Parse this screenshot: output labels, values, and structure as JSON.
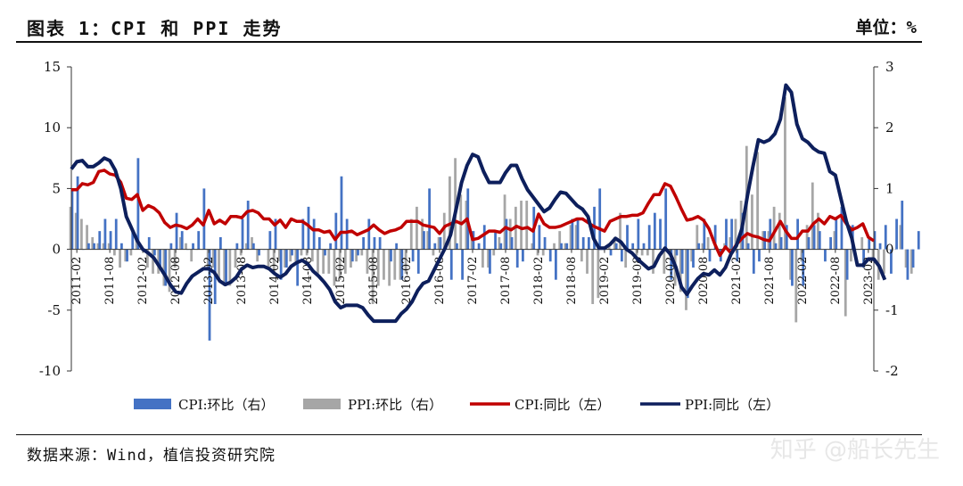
{
  "header": {
    "title": "图表 1：CPI 和 PPI 走势",
    "unit": "单位：%"
  },
  "footer": {
    "source": "数据来源：Wind，植信投资研究院",
    "watermark": "知乎 @船长先生"
  },
  "chart_data": {
    "type": "line",
    "title": "图表 1：CPI 和 PPI 走势",
    "left_axis": {
      "min": -10,
      "max": 15,
      "ticks": [
        15,
        10,
        5,
        0,
        -5,
        -10
      ]
    },
    "right_axis": {
      "min": -2,
      "max": 3,
      "ticks": [
        3,
        2,
        1,
        0,
        -1,
        -2
      ]
    },
    "x_tick_labels": [
      "2011-02",
      "2011-08",
      "2012-02",
      "2012-08",
      "2013-02",
      "2013-08",
      "2014-02",
      "2014-08",
      "2015-02",
      "2015-08",
      "2016-02",
      "2016-08",
      "2017-02",
      "2017-08",
      "2018-02",
      "2018-08",
      "2019-02",
      "2019-08",
      "2020-02",
      "2020-08",
      "2021-02",
      "2021-08",
      "2022-02",
      "2022-08",
      "2023-02"
    ],
    "x_start": "2011-01",
    "x_end": "2023-03",
    "legend_position": "bottom",
    "series": [
      {
        "name": "CPI:环比（右）",
        "type": "bar",
        "axis": "right",
        "color": "#4472c4",
        "values": [
          1.0,
          1.2,
          0.0,
          0.1,
          0.1,
          0.3,
          0.5,
          0.3,
          0.5,
          0.1,
          -0.2,
          0.3,
          1.5,
          0.0,
          0.2,
          -0.1,
          -0.3,
          -0.6,
          0.1,
          0.6,
          0.3,
          0.0,
          0.1,
          0.3,
          1.0,
          -1.5,
          -0.9,
          0.2,
          -0.6,
          0.0,
          0.1,
          0.5,
          0.8,
          0.1,
          -0.1,
          0.0,
          0.3,
          0.5,
          -0.5,
          -0.3,
          -0.1,
          -0.6,
          0.5,
          0.7,
          0.5,
          0.2,
          -0.1,
          0.1,
          0.6,
          1.2,
          0.5,
          -0.2,
          -0.1,
          0.2,
          0.5,
          0.2,
          0.2,
          0.0,
          -0.2,
          0.1,
          -0.5,
          0.0,
          -0.2,
          -0.4,
          0.3,
          1.0,
          0.1,
          0.2,
          0.1,
          -0.5,
          0.1,
          -0.5,
          1.0,
          0.3,
          0.1,
          0.4,
          -0.4,
          0.3,
          0.1,
          0.5,
          0.2,
          -0.3,
          -0.2,
          0.0,
          0.7,
          0.4,
          0.2,
          -0.2,
          -0.5,
          0.1,
          0.1,
          0.5,
          0.5,
          0.2,
          0.2,
          0.7,
          1.0,
          0.0,
          -0.1,
          0.1,
          -0.2,
          0.4,
          0.1,
          0.5,
          0.1,
          0.4,
          0.6,
          0.5,
          1.0,
          -0.5,
          -0.1,
          -0.4,
          -0.8,
          -0.3,
          0.1,
          0.5,
          -0.2,
          0.4,
          -0.2,
          0.5,
          0.5,
          -0.2,
          0.6,
          0.1,
          -0.4,
          -0.2,
          0.3,
          0.5,
          0.1,
          0.2,
          0.4,
          -0.6,
          0.5,
          -0.6,
          0.2,
          0.4,
          0.3,
          -0.2,
          0.2,
          0.5,
          0.7,
          -0.5,
          0.4,
          0.0,
          -0.3,
          0.2,
          0.3,
          0.1,
          0.4,
          -0.4,
          0.5,
          0.8,
          -0.5,
          -0.3,
          0.3
        ]
      },
      {
        "name": "PPI:环比（右）",
        "type": "bar",
        "axis": "right",
        "color": "#a6a6a6",
        "values": [
          0.7,
          0.6,
          0.5,
          0.4,
          0.2,
          0.1,
          0.1,
          0.1,
          -0.1,
          -0.3,
          -0.2,
          -0.1,
          0.2,
          0.0,
          -0.3,
          -0.4,
          -0.4,
          -0.6,
          -0.7,
          -0.3,
          0.2,
          0.1,
          -0.2,
          0.0,
          0.0,
          -0.3,
          -0.3,
          -0.5,
          -0.6,
          -0.6,
          -0.3,
          -0.1,
          0.1,
          0.2,
          -0.2,
          0.0,
          -0.3,
          -0.4,
          -0.2,
          -0.3,
          -0.2,
          -0.2,
          -0.1,
          -0.1,
          -0.2,
          -0.4,
          -0.4,
          -0.4,
          -0.6,
          -0.5,
          -0.4,
          -0.3,
          -0.2,
          -0.1,
          -0.4,
          -0.9,
          -0.6,
          -0.5,
          -0.6,
          -0.5,
          -0.5,
          -0.4,
          0.5,
          0.7,
          0.5,
          0.3,
          -0.1,
          0.2,
          0.6,
          1.2,
          1.5,
          0.9,
          0.8,
          0.3,
          0.0,
          -0.3,
          -0.3,
          -0.1,
          0.2,
          0.9,
          0.5,
          0.7,
          0.8,
          0.8,
          0.1,
          -0.1,
          -0.1,
          0.0,
          0.1,
          0.3,
          0.1,
          0.4,
          0.4,
          -0.2,
          -0.4,
          -0.9,
          -0.8,
          0.0,
          0.1,
          0.2,
          0.6,
          -0.3,
          0.0,
          -0.1,
          -0.1,
          -0.1,
          -0.4,
          0.0,
          -0.4,
          -0.1,
          -0.6,
          -0.7,
          -1.0,
          -0.2,
          0.4,
          0.1,
          0.2,
          0.0,
          0.0,
          0.1,
          0.2,
          0.5,
          0.8,
          1.7,
          0.9,
          1.6,
          0.3,
          0.3,
          0.7,
          0.6,
          2.5,
          -0.5,
          -1.2,
          -0.2,
          0.4,
          1.1,
          0.6,
          0.0,
          0.0,
          0.3,
          0.0,
          -1.1,
          -0.2,
          0.0,
          0.2,
          0.0,
          -0.2,
          -0.5,
          -0.4,
          0.0,
          0.0,
          0.4,
          -0.3,
          -0.4
        ]
      },
      {
        "name": "CPI:同比（左）",
        "type": "line",
        "axis": "left",
        "color": "#c00000",
        "values": [
          4.9,
          4.9,
          5.4,
          5.3,
          5.5,
          6.4,
          6.5,
          6.2,
          6.1,
          5.5,
          4.2,
          4.1,
          4.5,
          3.2,
          3.6,
          3.4,
          3.0,
          2.2,
          1.8,
          2.0,
          1.9,
          1.7,
          2.0,
          2.5,
          2.0,
          3.2,
          2.1,
          2.4,
          2.1,
          2.7,
          2.7,
          2.6,
          3.1,
          3.2,
          3.0,
          2.5,
          2.5,
          2.0,
          2.4,
          1.8,
          2.5,
          2.3,
          2.3,
          2.0,
          1.6,
          1.6,
          1.4,
          1.5,
          0.8,
          1.4,
          1.4,
          1.5,
          1.2,
          1.4,
          1.6,
          2.0,
          1.6,
          1.3,
          1.5,
          1.6,
          1.8,
          2.3,
          2.3,
          2.3,
          2.0,
          1.9,
          1.8,
          1.3,
          1.9,
          2.1,
          2.3,
          2.1,
          2.5,
          0.8,
          0.9,
          1.2,
          1.5,
          1.5,
          1.4,
          1.8,
          1.6,
          1.9,
          1.7,
          1.8,
          1.5,
          2.9,
          2.1,
          1.8,
          1.8,
          1.9,
          2.1,
          2.3,
          2.5,
          2.5,
          2.2,
          1.9,
          1.7,
          1.5,
          2.3,
          2.5,
          2.7,
          2.7,
          2.8,
          2.8,
          3.0,
          3.8,
          4.5,
          4.5,
          5.4,
          5.2,
          4.3,
          3.3,
          2.4,
          2.5,
          2.7,
          2.4,
          1.7,
          0.5,
          -0.5,
          0.2,
          -0.3,
          0.4,
          0.9,
          1.3,
          1.1,
          1.0,
          0.8,
          0.7,
          1.5,
          2.3,
          1.5,
          0.9,
          0.9,
          1.5,
          1.5,
          2.1,
          2.5,
          2.1,
          2.7,
          2.5,
          2.8,
          2.1,
          1.6,
          1.8,
          2.1,
          1.0,
          0.7
        ]
      },
      {
        "name": "PPI:同比（左）",
        "type": "line",
        "axis": "left",
        "color": "#0d1f5c",
        "values": [
          6.6,
          7.2,
          7.3,
          6.8,
          6.8,
          7.1,
          7.5,
          7.3,
          6.5,
          5.0,
          2.7,
          1.7,
          0.7,
          0.0,
          -0.3,
          -0.7,
          -1.4,
          -2.1,
          -2.9,
          -3.5,
          -3.6,
          -2.8,
          -2.2,
          -1.9,
          -1.6,
          -1.6,
          -1.9,
          -2.6,
          -2.9,
          -2.7,
          -2.3,
          -1.6,
          -1.3,
          -1.5,
          -1.4,
          -1.4,
          -1.6,
          -2.0,
          -2.3,
          -2.0,
          -1.4,
          -1.1,
          -0.9,
          -1.2,
          -1.8,
          -2.2,
          -2.7,
          -3.3,
          -4.3,
          -4.8,
          -4.6,
          -4.6,
          -4.6,
          -4.8,
          -5.4,
          -5.9,
          -5.9,
          -5.9,
          -5.9,
          -5.9,
          -5.3,
          -4.9,
          -4.3,
          -3.4,
          -2.8,
          -2.6,
          -1.7,
          -0.8,
          0.1,
          1.2,
          3.3,
          5.5,
          6.9,
          7.8,
          7.6,
          6.4,
          5.5,
          5.5,
          5.5,
          6.3,
          6.9,
          6.9,
          5.8,
          4.9,
          4.3,
          3.7,
          3.1,
          3.4,
          4.1,
          4.7,
          4.6,
          4.1,
          3.6,
          3.3,
          2.7,
          0.9,
          0.1,
          0.1,
          0.4,
          0.9,
          0.6,
          0.0,
          -0.3,
          -0.8,
          -1.2,
          -1.6,
          -1.4,
          -0.5,
          0.1,
          -0.4,
          -1.5,
          -3.1,
          -3.7,
          -3.0,
          -2.4,
          -2.0,
          -2.1,
          -1.7,
          -2.1,
          -1.5,
          -0.4,
          0.3,
          1.7,
          4.4,
          6.8,
          9.0,
          8.8,
          9.0,
          9.5,
          10.7,
          13.5,
          12.9,
          10.3,
          9.1,
          8.8,
          8.3,
          8.0,
          7.9,
          6.4,
          6.1,
          4.2,
          2.3,
          0.9,
          -1.3,
          -1.3,
          -0.8,
          -0.8,
          -1.4,
          -2.5
        ]
      }
    ]
  }
}
